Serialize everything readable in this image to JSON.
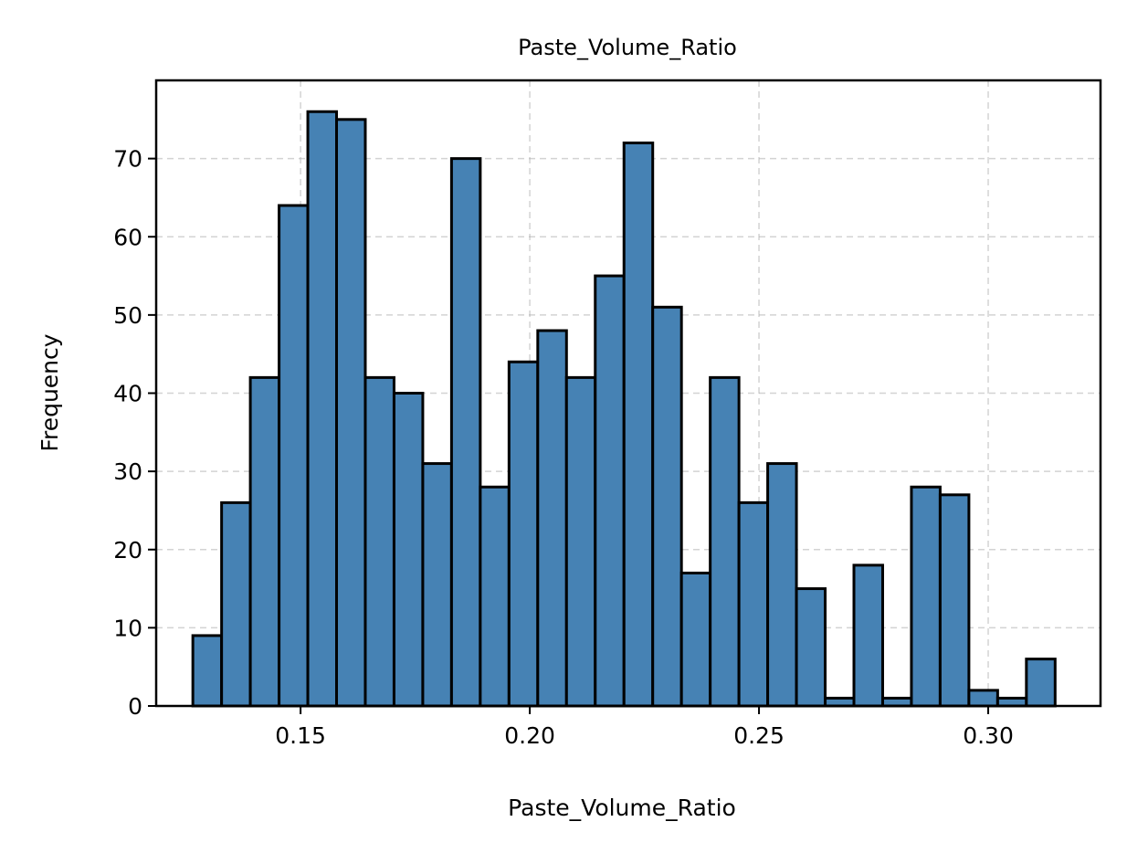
{
  "chart_data": {
    "type": "bar",
    "title": "Paste_Volume_Ratio",
    "xlabel": "Paste_Volume_Ratio",
    "ylabel": "Frequency",
    "bar_color": "#4682b4",
    "edge_color": "#000000",
    "grid": true,
    "xlim": [
      0.1185,
      0.3245
    ],
    "ylim": [
      0,
      80
    ],
    "xticks": [
      0.15,
      0.2,
      0.25,
      0.3
    ],
    "xtick_labels": [
      "0.15",
      "0.20",
      "0.25",
      "0.30"
    ],
    "yticks": [
      0,
      10,
      20,
      30,
      40,
      50,
      60,
      70
    ],
    "ytick_labels": [
      "0",
      "10",
      "20",
      "30",
      "40",
      "50",
      "60",
      "70"
    ],
    "bin_start": 0.1265,
    "bin_width": 0.00627,
    "values": [
      9,
      26,
      42,
      64,
      76,
      75,
      42,
      40,
      31,
      70,
      28,
      44,
      48,
      42,
      55,
      72,
      51,
      17,
      42,
      26,
      31,
      15,
      1,
      18,
      1,
      28,
      27,
      2,
      1,
      6
    ]
  }
}
